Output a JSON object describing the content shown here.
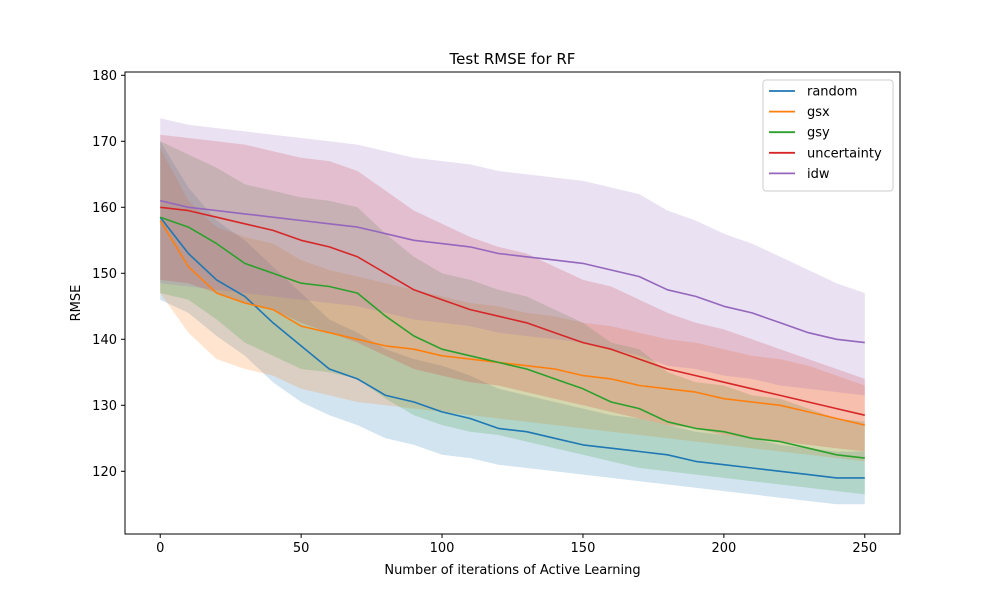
{
  "chart_data": {
    "type": "line",
    "title": "Test RMSE for RF",
    "xlabel": "Number of iterations of Active Learning",
    "ylabel": "RMSE",
    "xlim": [
      -12.5,
      262.5
    ],
    "ylim": [
      110.5,
      180.5
    ],
    "xticks": [
      0,
      50,
      100,
      150,
      200,
      250
    ],
    "yticks": [
      120,
      130,
      140,
      150,
      160,
      170,
      180
    ],
    "grid": false,
    "legend_position": "top-right",
    "series": [
      {
        "name": "random",
        "color": "#1f77b4",
        "x": [
          0,
          10,
          20,
          30,
          40,
          50,
          60,
          70,
          80,
          90,
          100,
          110,
          120,
          130,
          140,
          150,
          160,
          170,
          180,
          190,
          200,
          210,
          220,
          230,
          240,
          250
        ],
        "mean": [
          158.5,
          153.0,
          149.0,
          146.5,
          142.5,
          139.0,
          135.5,
          134.0,
          131.5,
          130.5,
          129.0,
          128.0,
          126.5,
          126.0,
          125.0,
          124.0,
          123.5,
          123.0,
          122.5,
          121.5,
          121.0,
          120.5,
          120.0,
          119.5,
          119.0,
          119.0
        ],
        "lower": [
          146.0,
          144.0,
          140.5,
          137.5,
          133.5,
          130.5,
          128.5,
          127.0,
          125.0,
          124.0,
          122.5,
          122.0,
          121.0,
          120.5,
          120.0,
          119.5,
          119.0,
          118.5,
          118.0,
          117.5,
          117.0,
          116.5,
          116.0,
          115.5,
          115.0,
          115.0
        ],
        "upper": [
          170.0,
          163.0,
          158.0,
          155.0,
          151.0,
          147.0,
          143.0,
          141.0,
          138.5,
          137.0,
          136.0,
          134.5,
          132.5,
          131.5,
          130.5,
          129.5,
          128.5,
          128.0,
          127.0,
          126.0,
          125.5,
          125.0,
          124.0,
          123.5,
          123.0,
          123.0
        ]
      },
      {
        "name": "gsx",
        "color": "#ff7f0e",
        "x": [
          0,
          10,
          20,
          30,
          40,
          50,
          60,
          70,
          80,
          90,
          100,
          110,
          120,
          130,
          140,
          150,
          160,
          170,
          180,
          190,
          200,
          210,
          220,
          230,
          240,
          250
        ],
        "mean": [
          158.0,
          151.0,
          147.0,
          145.5,
          144.5,
          142.0,
          141.0,
          140.0,
          139.0,
          138.5,
          137.5,
          137.0,
          136.5,
          136.0,
          135.5,
          134.5,
          134.0,
          133.0,
          132.5,
          132.0,
          131.0,
          130.5,
          130.0,
          129.0,
          128.0,
          127.0
        ],
        "lower": [
          147.0,
          141.0,
          137.0,
          135.5,
          134.5,
          132.5,
          131.5,
          130.5,
          130.0,
          129.5,
          129.0,
          128.5,
          128.0,
          127.5,
          127.0,
          126.5,
          126.0,
          125.5,
          125.0,
          124.5,
          124.0,
          123.5,
          123.0,
          122.5,
          122.0,
          121.5
        ],
        "upper": [
          169.0,
          161.0,
          157.0,
          155.5,
          154.5,
          152.0,
          150.5,
          149.5,
          148.5,
          147.5,
          146.5,
          145.5,
          145.0,
          144.0,
          143.5,
          142.5,
          142.0,
          141.0,
          140.0,
          139.5,
          138.5,
          137.5,
          137.0,
          136.0,
          134.5,
          133.0
        ]
      },
      {
        "name": "gsy",
        "color": "#2ca02c",
        "x": [
          0,
          10,
          20,
          30,
          40,
          50,
          60,
          70,
          80,
          90,
          100,
          110,
          120,
          130,
          140,
          150,
          160,
          170,
          180,
          190,
          200,
          210,
          220,
          230,
          240,
          250
        ],
        "mean": [
          158.5,
          157.0,
          154.5,
          151.5,
          150.0,
          148.5,
          148.0,
          147.0,
          143.5,
          140.5,
          138.5,
          137.5,
          136.5,
          135.5,
          134.0,
          132.5,
          130.5,
          129.5,
          127.5,
          126.5,
          126.0,
          125.0,
          124.5,
          123.5,
          122.5,
          122.0
        ],
        "lower": [
          147.0,
          146.0,
          143.0,
          139.5,
          137.5,
          135.5,
          135.0,
          134.0,
          131.0,
          128.5,
          127.0,
          126.0,
          125.5,
          124.5,
          123.5,
          122.5,
          121.5,
          120.5,
          120.0,
          119.5,
          119.0,
          118.5,
          118.0,
          117.5,
          117.0,
          116.5
        ],
        "upper": [
          170.0,
          168.0,
          166.0,
          163.5,
          162.5,
          161.5,
          161.0,
          160.0,
          156.0,
          152.5,
          150.0,
          149.0,
          147.5,
          146.5,
          144.5,
          142.5,
          139.5,
          138.5,
          135.0,
          133.5,
          133.0,
          131.5,
          131.0,
          129.5,
          128.0,
          127.5
        ]
      },
      {
        "name": "uncertainty",
        "color": "#d62728",
        "x": [
          0,
          10,
          20,
          30,
          40,
          50,
          60,
          70,
          80,
          90,
          100,
          110,
          120,
          130,
          140,
          150,
          160,
          170,
          180,
          190,
          200,
          210,
          220,
          230,
          240,
          250
        ],
        "mean": [
          160.0,
          159.5,
          158.5,
          157.5,
          156.5,
          155.0,
          154.0,
          152.5,
          150.0,
          147.5,
          146.0,
          144.5,
          143.5,
          142.5,
          141.0,
          139.5,
          138.5,
          137.0,
          135.5,
          134.5,
          133.5,
          132.5,
          131.5,
          130.5,
          129.5,
          128.5
        ],
        "lower": [
          149.0,
          148.5,
          147.0,
          145.5,
          144.5,
          142.5,
          141.0,
          139.5,
          137.5,
          135.5,
          134.5,
          133.5,
          133.0,
          132.0,
          131.0,
          130.0,
          129.0,
          128.0,
          127.0,
          126.5,
          125.5,
          125.0,
          124.5,
          124.0,
          123.5,
          123.0
        ],
        "upper": [
          171.0,
          170.5,
          170.0,
          169.5,
          168.5,
          167.5,
          167.0,
          165.5,
          162.5,
          159.5,
          157.5,
          155.5,
          154.0,
          153.0,
          151.0,
          149.0,
          148.0,
          146.0,
          144.0,
          142.5,
          141.5,
          140.0,
          138.5,
          137.0,
          135.5,
          134.0
        ]
      },
      {
        "name": "idw",
        "color": "#9467bd",
        "x": [
          0,
          10,
          20,
          30,
          40,
          50,
          60,
          70,
          80,
          90,
          100,
          110,
          120,
          130,
          140,
          150,
          160,
          170,
          180,
          190,
          200,
          210,
          220,
          230,
          240,
          250
        ],
        "mean": [
          161.0,
          160.0,
          159.5,
          159.0,
          158.5,
          158.0,
          157.5,
          157.0,
          156.0,
          155.0,
          154.5,
          154.0,
          153.0,
          152.5,
          152.0,
          151.5,
          150.5,
          149.5,
          147.5,
          146.5,
          145.0,
          144.0,
          142.5,
          141.0,
          140.0,
          139.5
        ],
        "lower": [
          148.5,
          148.0,
          147.5,
          147.0,
          146.5,
          146.0,
          145.5,
          145.0,
          144.0,
          143.0,
          142.5,
          142.0,
          141.0,
          140.5,
          140.0,
          139.5,
          138.5,
          137.5,
          136.0,
          135.5,
          134.5,
          134.0,
          133.0,
          132.5,
          132.0,
          131.5
        ],
        "upper": [
          173.5,
          172.5,
          172.0,
          171.5,
          171.0,
          170.5,
          170.0,
          169.5,
          168.5,
          167.5,
          167.0,
          166.5,
          165.5,
          165.0,
          164.5,
          164.0,
          163.0,
          162.0,
          159.5,
          158.0,
          156.0,
          154.5,
          152.5,
          150.5,
          148.5,
          147.0
        ]
      }
    ]
  }
}
